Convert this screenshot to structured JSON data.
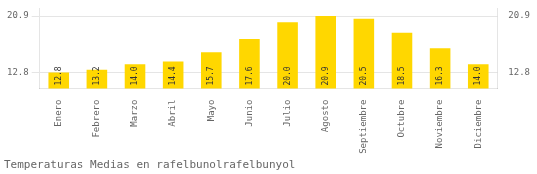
{
  "chart_data": {
    "type": "bar",
    "title": "Temperaturas Medias en rafelbunolrafelbunyol",
    "categories": [
      "Enero",
      "Febrero",
      "Marzo",
      "Abril",
      "Mayo",
      "Junio",
      "Julio",
      "Agosto",
      "Septiembre",
      "Octubre",
      "Noviembre",
      "Diciembre"
    ],
    "values": [
      12.8,
      13.2,
      14.0,
      14.4,
      15.7,
      17.6,
      20.0,
      20.9,
      20.5,
      18.5,
      16.3,
      14.0
    ],
    "value_labels": [
      "12.8",
      "13.2",
      "14.0",
      "14.4",
      "15.7",
      "17.6",
      "20.0",
      "20.9",
      "20.5",
      "18.5",
      "16.3",
      "14.0"
    ],
    "color": "#FFD700",
    "ylim": [
      10.5,
      22.0
    ],
    "yticks": [
      12.8,
      20.9
    ],
    "y2lim": [
      10.5,
      22.0
    ],
    "y2ticks": [
      12.8,
      20.9
    ],
    "grid": true,
    "data_labels": true
  }
}
